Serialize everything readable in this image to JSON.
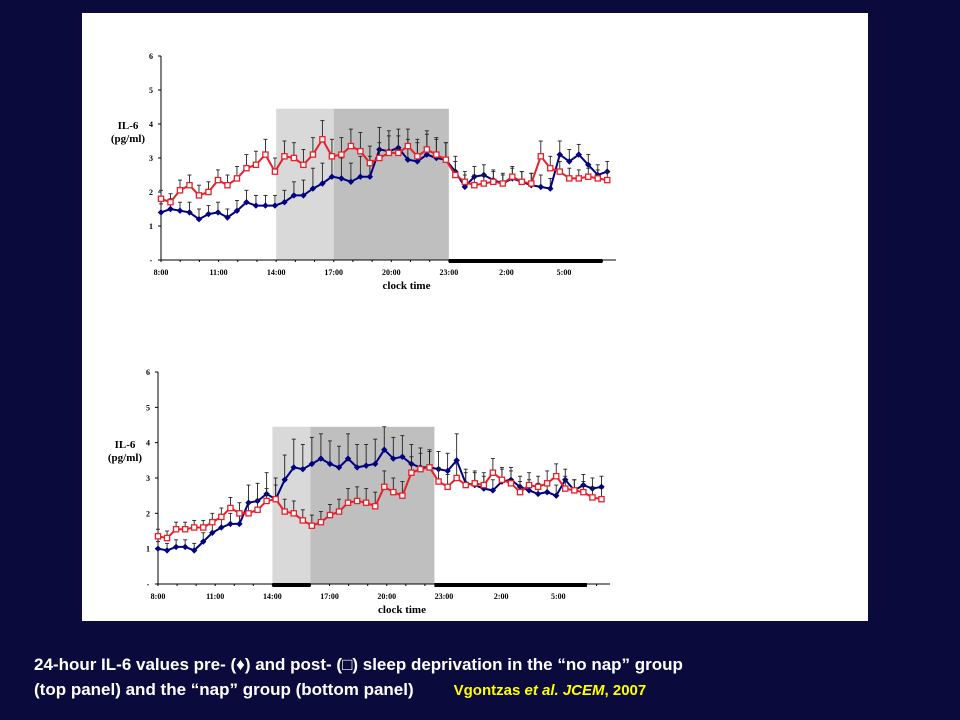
{
  "caption": {
    "line1": "24-hour IL-6 values pre- (♦) and post- (□) sleep deprivation in the “no nap” group",
    "line2": "(top panel) and the “nap” group (bottom panel)",
    "citation_author": "Vgontzas ",
    "citation_etal": "et al.",
    "citation_journal": " JCEM",
    "citation_year": ", 2007"
  },
  "colors": {
    "pre": "#000080",
    "post": "#e8202a",
    "light_shade": "#d9d9d9",
    "dark_shade": "#bfbfbf",
    "background": "#0a0a3c"
  },
  "chart_data": [
    {
      "type": "line",
      "panel": "top",
      "group": "no nap",
      "ylabel_line1": "IL-6",
      "ylabel_line2": "(pg/ml)",
      "xlabel": "clock time",
      "ylim": [
        0,
        6
      ],
      "yticks": [
        "6",
        "5",
        "4",
        "3",
        "2",
        "1",
        "-"
      ],
      "xticks": [
        {
          "h": 0,
          "label": "8:00"
        },
        {
          "h": 3,
          "label": "11:00"
        },
        {
          "h": 6,
          "label": "14:00"
        },
        {
          "h": 9,
          "label": "17:00"
        },
        {
          "h": 12,
          "label": "20:00"
        },
        {
          "h": 15,
          "label": "23:00"
        },
        {
          "h": 18,
          "label": "2:00"
        },
        {
          "h": 21,
          "label": "5:00"
        }
      ],
      "shaded_light": [
        6,
        9
      ],
      "shaded_dark": [
        9,
        15
      ],
      "sleep_bars": [
        [
          15,
          23
        ]
      ],
      "series": [
        {
          "marker": "diamond",
          "values": [
            1.4,
            1.5,
            1.45,
            1.4,
            1.2,
            1.35,
            1.4,
            1.25,
            1.45,
            1.7,
            1.6,
            1.6,
            1.6,
            1.7,
            1.9,
            1.9,
            2.1,
            2.25,
            2.45,
            2.4,
            2.3,
            2.45,
            2.45,
            3.25,
            3.2,
            3.3,
            2.95,
            2.9,
            3.1,
            3.0,
            2.95,
            2.6,
            2.15,
            2.45,
            2.5,
            2.35,
            2.25,
            2.4,
            2.3,
            2.2,
            2.15,
            2.1,
            3.1,
            2.9,
            3.1,
            2.8,
            2.5,
            2.6
          ],
          "errors": [
            0.25,
            0.3,
            0.25,
            0.3,
            0.3,
            0.25,
            0.3,
            0.25,
            0.3,
            0.35,
            0.3,
            0.3,
            0.3,
            0.35,
            0.4,
            0.45,
            0.6,
            0.6,
            0.65,
            0.6,
            0.55,
            0.6,
            0.6,
            0.65,
            0.6,
            0.55,
            0.6,
            0.55,
            0.6,
            0.55,
            0.5,
            0.45,
            0.35,
            0.3,
            0.3,
            0.3,
            0.3,
            0.3,
            0.3,
            0.35,
            0.35,
            0.3,
            0.4,
            0.35,
            0.3,
            0.3,
            0.3,
            0.3
          ]
        },
        {
          "marker": "square",
          "values": [
            1.8,
            1.7,
            2.05,
            2.2,
            1.9,
            2.0,
            2.35,
            2.2,
            2.4,
            2.7,
            2.8,
            3.1,
            2.6,
            3.05,
            3.0,
            2.8,
            3.1,
            3.55,
            3.05,
            3.1,
            3.35,
            3.2,
            2.85,
            3.0,
            3.15,
            3.15,
            3.35,
            3.05,
            3.25,
            3.1,
            2.95,
            2.5,
            2.3,
            2.2,
            2.25,
            2.3,
            2.25,
            2.45,
            2.3,
            2.25,
            3.05,
            2.7,
            2.6,
            2.4,
            2.4,
            2.45,
            2.4,
            2.35
          ],
          "errors": [
            0.25,
            0.25,
            0.3,
            0.3,
            0.3,
            0.3,
            0.3,
            0.3,
            0.35,
            0.4,
            0.4,
            0.45,
            0.4,
            0.45,
            0.45,
            0.45,
            0.5,
            0.55,
            0.5,
            0.5,
            0.5,
            0.55,
            0.5,
            0.45,
            0.5,
            0.5,
            0.5,
            0.5,
            0.55,
            0.5,
            0.5,
            0.4,
            0.3,
            0.3,
            0.25,
            0.3,
            0.25,
            0.3,
            0.3,
            0.3,
            0.45,
            0.35,
            0.3,
            0.3,
            0.25,
            0.25,
            0.25,
            0.25
          ]
        }
      ]
    },
    {
      "type": "line",
      "panel": "bottom",
      "group": "nap",
      "ylabel_line1": "IL-6",
      "ylabel_line2": "(pg/ml)",
      "xlabel": "clock time",
      "ylim": [
        0,
        6
      ],
      "yticks": [
        "6",
        "5",
        "4",
        "3",
        "2",
        "1",
        "-"
      ],
      "xticks": [
        {
          "h": 0,
          "label": "8:00"
        },
        {
          "h": 3,
          "label": "11:00"
        },
        {
          "h": 6,
          "label": "14:00"
        },
        {
          "h": 9,
          "label": "17:00"
        },
        {
          "h": 12,
          "label": "20:00"
        },
        {
          "h": 15,
          "label": "23:00"
        },
        {
          "h": 18,
          "label": "2:00"
        },
        {
          "h": 21,
          "label": "5:00"
        }
      ],
      "shaded_light": [
        6,
        8
      ],
      "shaded_dark": [
        8,
        14.5
      ],
      "sleep_bars": [
        [
          6,
          8
        ],
        [
          14.5,
          22.5
        ]
      ],
      "series": [
        {
          "marker": "diamond",
          "values": [
            1.0,
            0.95,
            1.05,
            1.05,
            0.95,
            1.2,
            1.45,
            1.6,
            1.7,
            1.7,
            2.3,
            2.35,
            2.55,
            2.4,
            2.95,
            3.3,
            3.25,
            3.4,
            3.55,
            3.4,
            3.3,
            3.55,
            3.3,
            3.35,
            3.4,
            3.8,
            3.55,
            3.6,
            3.4,
            3.3,
            3.3,
            3.25,
            3.2,
            3.5,
            2.85,
            2.8,
            2.7,
            2.65,
            2.9,
            2.95,
            2.75,
            2.65,
            2.55,
            2.6,
            2.5,
            2.95,
            2.65,
            2.8,
            2.7,
            2.75
          ],
          "errors": [
            0.2,
            0.2,
            0.2,
            0.2,
            0.2,
            0.25,
            0.3,
            0.3,
            0.3,
            0.3,
            0.5,
            0.5,
            0.6,
            0.6,
            0.7,
            0.8,
            0.7,
            0.75,
            0.7,
            0.65,
            0.6,
            0.7,
            0.65,
            0.6,
            0.7,
            0.65,
            0.6,
            0.6,
            0.55,
            0.55,
            0.5,
            0.5,
            0.5,
            0.75,
            0.4,
            0.35,
            0.35,
            0.3,
            0.35,
            0.35,
            0.3,
            0.3,
            0.3,
            0.3,
            0.3,
            0.3,
            0.3,
            0.3,
            0.3,
            0.3
          ]
        },
        {
          "marker": "square",
          "values": [
            1.35,
            1.3,
            1.55,
            1.55,
            1.6,
            1.6,
            1.75,
            1.9,
            2.15,
            2.0,
            2.0,
            2.1,
            2.35,
            2.4,
            2.05,
            2.0,
            1.8,
            1.65,
            1.75,
            1.95,
            2.05,
            2.3,
            2.35,
            2.3,
            2.2,
            2.75,
            2.6,
            2.5,
            3.15,
            3.25,
            3.3,
            2.9,
            2.75,
            3.0,
            2.8,
            2.85,
            2.8,
            3.15,
            2.95,
            2.85,
            2.6,
            2.8,
            2.75,
            2.85,
            3.05,
            2.7,
            2.65,
            2.6,
            2.45,
            2.4
          ],
          "errors": [
            0.2,
            0.2,
            0.2,
            0.2,
            0.2,
            0.2,
            0.25,
            0.25,
            0.3,
            0.3,
            0.3,
            0.3,
            0.35,
            0.4,
            0.35,
            0.35,
            0.3,
            0.3,
            0.3,
            0.3,
            0.35,
            0.4,
            0.4,
            0.4,
            0.4,
            0.45,
            0.4,
            0.4,
            0.45,
            0.45,
            0.45,
            0.4,
            0.35,
            0.4,
            0.35,
            0.35,
            0.35,
            0.4,
            0.35,
            0.35,
            0.3,
            0.35,
            0.3,
            0.35,
            0.35,
            0.35,
            0.3,
            0.3,
            0.3,
            0.3
          ]
        }
      ]
    }
  ]
}
